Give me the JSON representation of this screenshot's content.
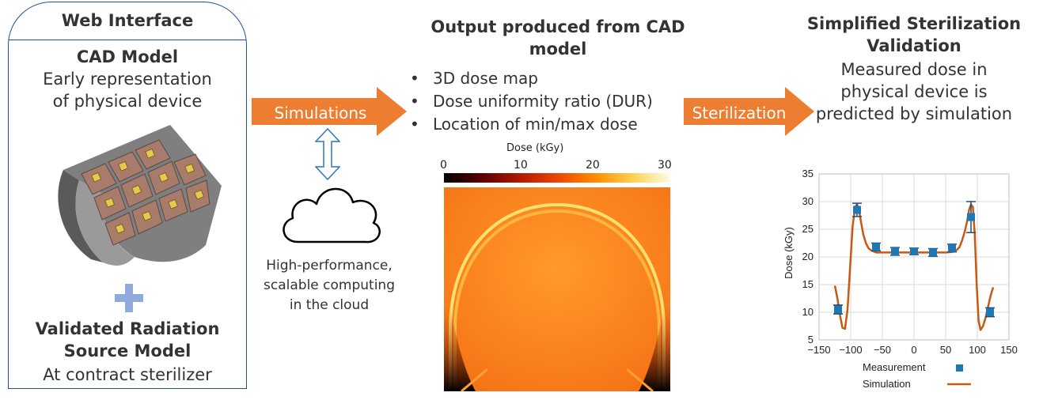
{
  "web_interface": {
    "title": "Web Interface",
    "cad_title": "CAD Model",
    "cad_desc_1": "Early representation",
    "cad_desc_2": "of physical device",
    "plus_icon": "plus-icon",
    "source_title_1": "Validated Radiation",
    "source_title_2": "Source Model",
    "source_desc": "At contract sterilizer"
  },
  "simulations": {
    "arrow_label": "Simulations",
    "cloud_text_1": "High-performance,",
    "cloud_text_2": "scalable computing",
    "cloud_text_3": "in the cloud"
  },
  "output": {
    "title_1": "Output produced from CAD",
    "title_2": "model",
    "bullets": [
      "3D dose map",
      "Dose uniformity ratio (DUR)",
      "Location of min/max dose"
    ],
    "colorbar_label": "Dose (kGy)",
    "colorbar_ticks": [
      "0",
      "10",
      "20",
      "30"
    ]
  },
  "sterilization": {
    "arrow_label": "Sterilization",
    "title_1": "Simplified Sterilization",
    "title_2": "Validation",
    "desc_1": "Measured dose in",
    "desc_2": "physical device is",
    "desc_3": "predicted by simulation"
  },
  "colors": {
    "arrow": "#ed7d31",
    "border": "#1f4e9c",
    "marker": "#1f77b4",
    "line": "#c55a11",
    "plus": "#8faadc"
  },
  "chart_data": {
    "type": "scatter",
    "xlabel": "",
    "ylabel": "Dose (kGy)",
    "xlim": [
      -150,
      150
    ],
    "ylim": [
      5,
      35
    ],
    "xticks": [
      -150,
      -100,
      -50,
      0,
      50,
      100,
      150
    ],
    "yticks": [
      5,
      10,
      15,
      20,
      25,
      30,
      35
    ],
    "xtick_labels": [
      "−150",
      "−100",
      "−50",
      "0",
      "50",
      "100",
      "150"
    ],
    "ytick_labels": [
      "5",
      "10",
      "15",
      "20",
      "25",
      "30",
      "35"
    ],
    "grid": true,
    "series": [
      {
        "name": "Measurement",
        "kind": "marker",
        "x": [
          -120,
          -90,
          -60,
          -30,
          0,
          30,
          60,
          90,
          120
        ],
        "y": [
          10.5,
          28.5,
          21.8,
          21.0,
          21.0,
          20.8,
          21.6,
          27.2,
          10.0
        ],
        "err": [
          0.8,
          1.2,
          0.7,
          0.7,
          0.6,
          0.7,
          0.7,
          2.8,
          0.8
        ]
      },
      {
        "name": "Simulation",
        "kind": "line",
        "x": [
          -125,
          -121,
          -117,
          -113,
          -109,
          -105,
          -101,
          -97,
          -93,
          -90,
          -87,
          -84,
          -80,
          -76,
          -72,
          -68,
          -64,
          -60,
          -50,
          -30,
          0,
          30,
          50,
          60,
          64,
          68,
          72,
          76,
          80,
          84,
          87,
          90,
          93,
          96,
          99,
          102,
          105,
          109,
          113,
          117,
          121,
          125
        ],
        "y": [
          14.8,
          12.5,
          9.5,
          7.2,
          7.0,
          10.5,
          18.0,
          25.5,
          29.0,
          29.5,
          28.5,
          26.5,
          24.0,
          22.5,
          21.6,
          21.2,
          21.0,
          20.8,
          20.8,
          20.8,
          20.8,
          20.8,
          20.8,
          20.9,
          21.0,
          21.3,
          21.8,
          23.0,
          24.5,
          26.5,
          28.5,
          29.5,
          29.0,
          24.0,
          15.0,
          8.5,
          6.8,
          7.5,
          9.0,
          11.0,
          13.0,
          14.5
        ]
      }
    ],
    "legend": "bottom"
  }
}
